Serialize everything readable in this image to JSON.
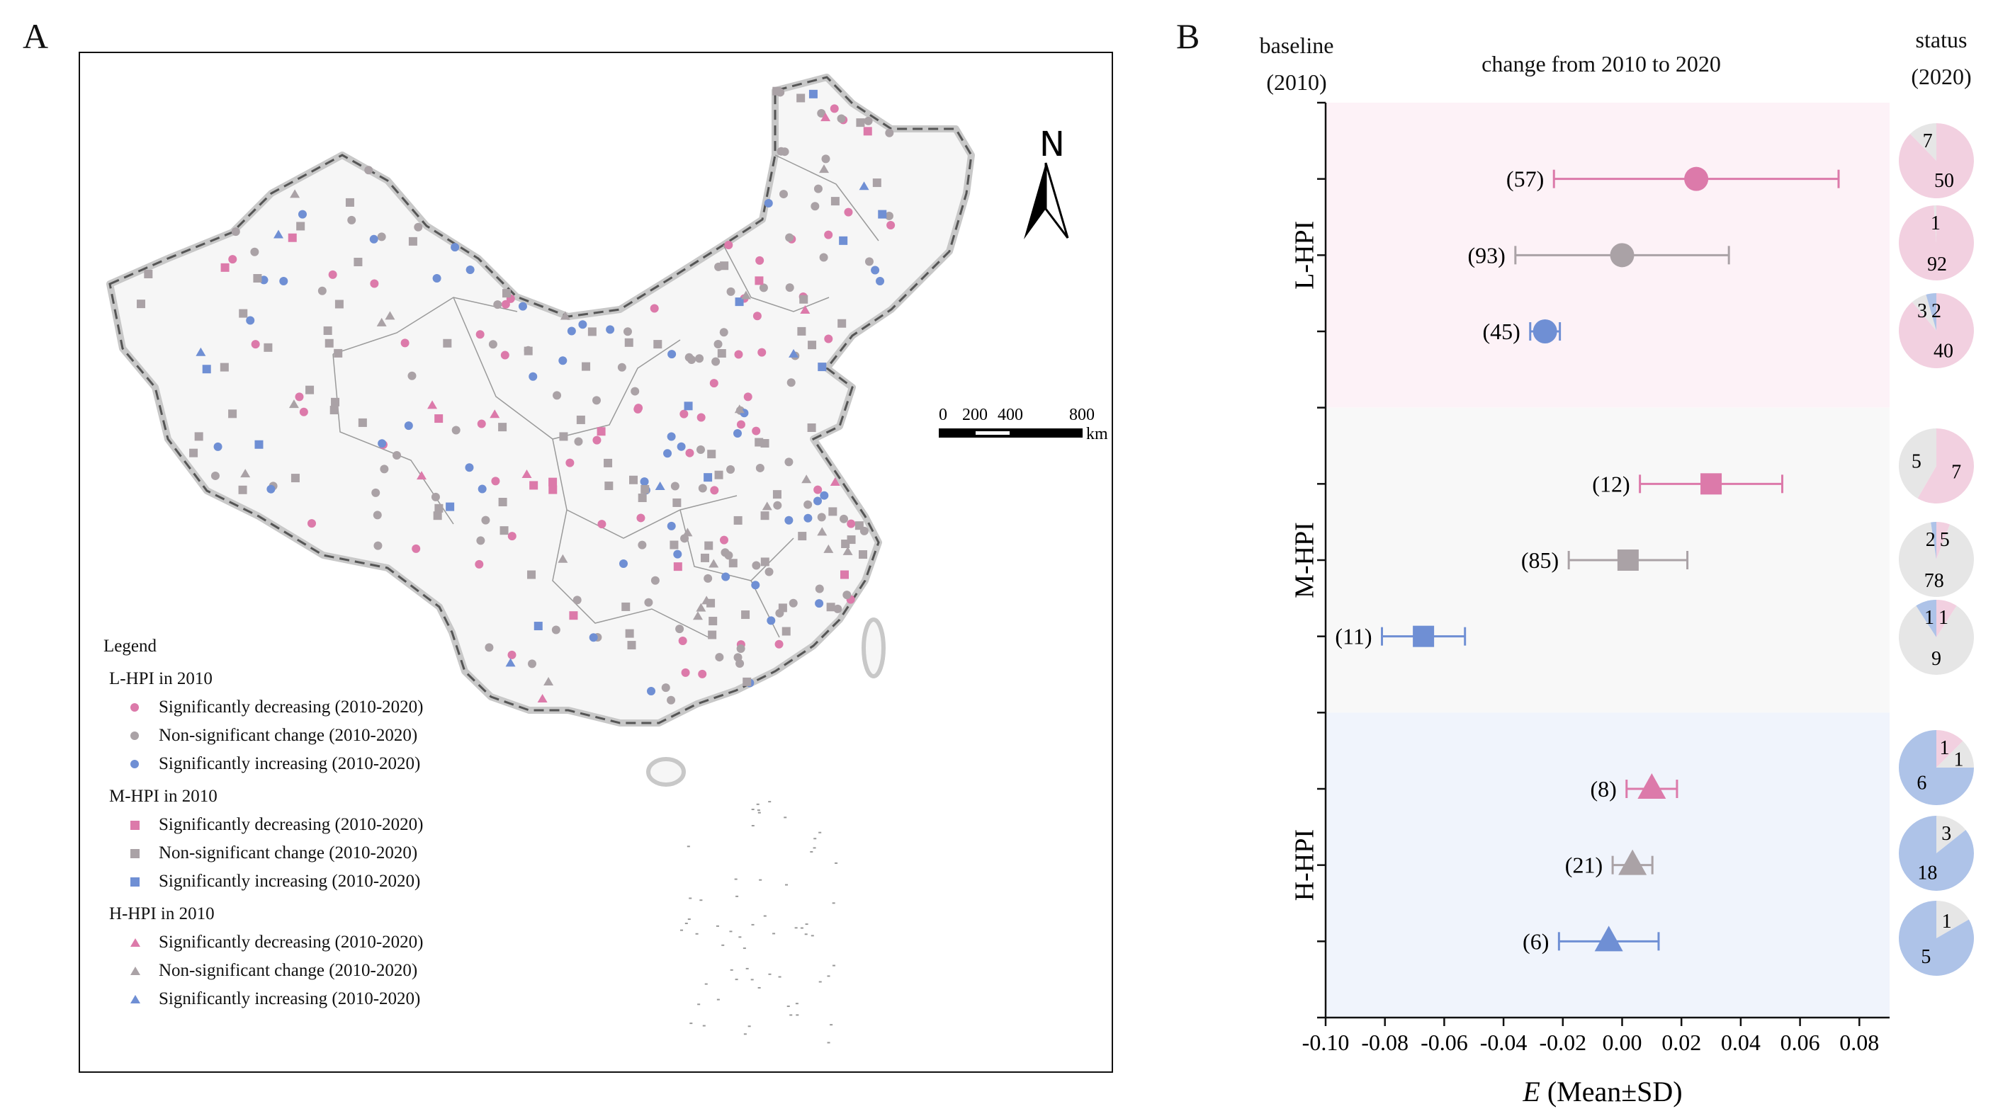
{
  "panels": {
    "a": "A",
    "b": "B"
  },
  "map": {
    "north_label": "N",
    "scale_bar": {
      "ticks": [
        "0",
        "200",
        "400",
        "800"
      ],
      "unit": "km"
    },
    "legend": {
      "title": "Legend",
      "groups": [
        {
          "title": "L-HPI in 2010",
          "shape": "circle",
          "items": [
            "Significantly decreasing (2010-2020)",
            "Non-significant change (2010-2020)",
            "Significantly increasing (2010-2020)"
          ]
        },
        {
          "title": "M-HPI in 2010",
          "shape": "square",
          "items": [
            "Significantly decreasing (2010-2020)",
            "Non-significant change (2010-2020)",
            "Significantly increasing (2010-2020)"
          ]
        },
        {
          "title": "H-HPI in 2010",
          "shape": "triangle",
          "items": [
            "Significantly decreasing (2010-2020)",
            "Non-significant change (2010-2020)",
            "Significantly increasing (2010-2020)"
          ]
        }
      ]
    }
  },
  "colors": {
    "decreasing": "#dc7aaa",
    "nonsig": "#aaa2a6",
    "increasing": "#6f8fd4",
    "pie_L": "#f2d0e0",
    "pie_M": "#e6e6e6",
    "pie_H": "#aec3e8",
    "band_L": "#fdf2f7",
    "band_M": "#f8f8f8",
    "band_H": "#f0f4fc"
  },
  "chart_data": {
    "type": "errorbar",
    "header_left": [
      "baseline",
      "(2010)"
    ],
    "title": "change from 2010 to 2020",
    "header_right": [
      "status",
      "(2020)"
    ],
    "xlabel_italic": "E",
    "xlabel": " (Mean±SD)",
    "xlim": [
      -0.1,
      0.09
    ],
    "xticks": [
      "-0.10",
      "-0.08",
      "-0.06",
      "-0.04",
      "-0.02",
      "0.00",
      "0.02",
      "0.04",
      "0.06",
      "0.08"
    ],
    "groups": [
      {
        "label": "L-HPI",
        "shape": "circle",
        "rows": [
          {
            "trend": "decreasing",
            "n_label": "(57)",
            "n": 57,
            "mean": 0.025,
            "sd": 0.048,
            "status_2020": {
              "L": 50,
              "M": 7,
              "H": 0
            }
          },
          {
            "trend": "nonsig",
            "n_label": "(93)",
            "n": 93,
            "mean": 0.0,
            "sd": 0.036,
            "status_2020": {
              "L": 92,
              "M": 1,
              "H": 0
            }
          },
          {
            "trend": "increasing",
            "n_label": "(45)",
            "n": 45,
            "mean": -0.026,
            "sd": 0.005,
            "status_2020": {
              "L": 40,
              "M": 3,
              "H": 2
            }
          }
        ]
      },
      {
        "label": "M-HPI",
        "shape": "square",
        "rows": [
          {
            "trend": "decreasing",
            "n_label": "(12)",
            "n": 12,
            "mean": 0.03,
            "sd": 0.024,
            "status_2020": {
              "L": 7,
              "M": 5,
              "H": 0
            }
          },
          {
            "trend": "nonsig",
            "n_label": "(85)",
            "n": 85,
            "mean": 0.002,
            "sd": 0.02,
            "status_2020": {
              "L": 5,
              "M": 78,
              "H": 2
            }
          },
          {
            "trend": "increasing",
            "n_label": "(11)",
            "n": 11,
            "mean": -0.067,
            "sd": 0.014,
            "status_2020": {
              "L": 1,
              "M": 9,
              "H": 1
            }
          }
        ]
      },
      {
        "label": "H-HPI",
        "shape": "triangle",
        "rows": [
          {
            "trend": "decreasing",
            "n_label": "(8)",
            "n": 8,
            "mean": 0.01,
            "sd": 0.0085,
            "status_2020": {
              "L": 1,
              "M": 1,
              "H": 6
            }
          },
          {
            "trend": "nonsig",
            "n_label": "(21)",
            "n": 21,
            "mean": 0.0035,
            "sd": 0.0067,
            "status_2020": {
              "L": 0,
              "M": 3,
              "H": 18
            }
          },
          {
            "trend": "increasing",
            "n_label": "(6)",
            "n": 6,
            "mean": -0.0045,
            "sd": 0.0168,
            "status_2020": {
              "L": 0,
              "M": 1,
              "H": 5
            }
          }
        ]
      }
    ]
  }
}
